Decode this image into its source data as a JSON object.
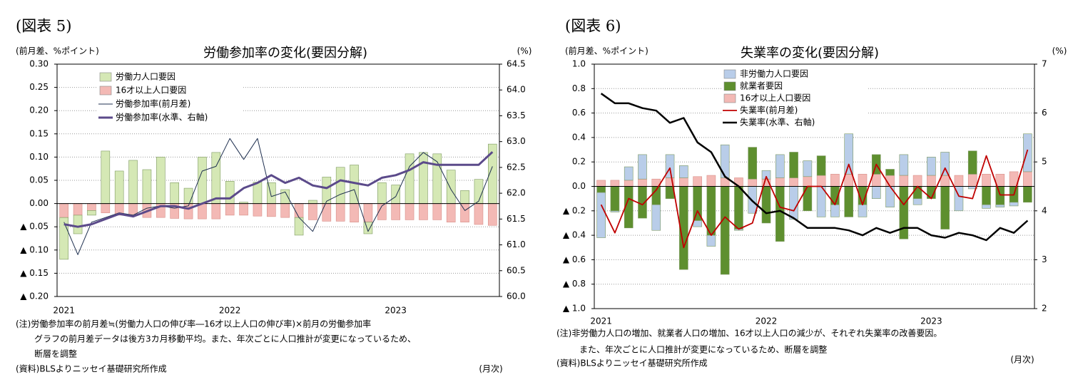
{
  "chart_data": [
    {
      "type": "bar_line",
      "caption": "(図表 5)",
      "title": "労働参加率の変化(要因分解)",
      "y_label": "(前月差、%ポイント)",
      "y2_label": "(%)",
      "x_unit": "(月次)",
      "notes": [
        "(注)労働参加率の前月差≒(労働力人口の伸び率―16才以上人口の伸び率)×前月の労働参加率",
        "グラフの前月差データは後方3カ月移動平均。また、年次ごとに人口推計が変更になっているため、",
        "断層を調整"
      ],
      "source": "(資料)BLSよりニッセイ基礎研究所作成",
      "categories": [
        "2021",
        null,
        null,
        null,
        null,
        null,
        null,
        null,
        null,
        null,
        null,
        null,
        "2022",
        null,
        null,
        null,
        null,
        null,
        null,
        null,
        null,
        null,
        null,
        null,
        "2023",
        null,
        null,
        null,
        null,
        null,
        null,
        null
      ],
      "series": [
        {
          "name": "労働力人口要因",
          "kind": "bar",
          "color": "#d5e8b5",
          "values": [
            -0.09,
            -0.04,
            -0.01,
            0.113,
            0.07,
            0.093,
            0.073,
            0.1,
            0.045,
            0.033,
            0.1,
            0.11,
            0.048,
            0.003,
            0.046,
            0.045,
            0.03,
            -0.038,
            0.007,
            0.057,
            0.078,
            0.083,
            -0.025,
            0.045,
            0.04,
            0.107,
            0.11,
            0.107,
            0.072,
            0.028,
            0.052,
            0.128
          ]
        },
        {
          "name": "16才以上人口要因",
          "kind": "bar",
          "color": "#f3b9b5",
          "values": [
            -0.03,
            -0.025,
            -0.015,
            -0.02,
            -0.025,
            -0.025,
            -0.03,
            -0.03,
            -0.032,
            -0.033,
            -0.033,
            -0.033,
            -0.025,
            -0.025,
            -0.027,
            -0.028,
            -0.03,
            -0.03,
            -0.035,
            -0.038,
            -0.038,
            -0.04,
            -0.04,
            -0.035,
            -0.035,
            -0.035,
            -0.035,
            -0.035,
            -0.04,
            -0.04,
            -0.045,
            -0.047
          ]
        },
        {
          "name": "労働参加率(前月差)",
          "kind": "line",
          "color": "#1f3050",
          "line_width": 1,
          "values": [
            -0.04,
            -0.11,
            -0.04,
            -0.03,
            -0.02,
            -0.025,
            -0.01,
            -0.005,
            -0.01,
            -0.005,
            0.07,
            0.08,
            0.14,
            0.095,
            0.14,
            0.015,
            0.025,
            -0.03,
            -0.06,
            0.005,
            0.02,
            0.03,
            -0.06,
            -0.005,
            0.015,
            0.08,
            0.11,
            0.09,
            0.03,
            -0.015,
            0.005,
            0.08
          ]
        },
        {
          "name": "労働参加率(水準、右軸)",
          "kind": "line",
          "axis": "y2",
          "color": "#5b4a8a",
          "line_width": 3,
          "values": [
            61.4,
            61.35,
            61.4,
            61.5,
            61.6,
            61.55,
            61.65,
            61.75,
            61.75,
            61.7,
            61.8,
            61.9,
            61.9,
            62.1,
            62.2,
            62.35,
            62.2,
            62.3,
            62.15,
            62.1,
            62.25,
            62.2,
            62.15,
            62.3,
            62.35,
            62.45,
            62.6,
            62.55,
            62.55,
            62.55,
            62.55,
            62.8
          ]
        }
      ],
      "ylim": [
        -0.2,
        0.3
      ],
      "yticks": [
        {
          "value": 0.3,
          "label": "0.30"
        },
        0.25,
        {
          "value": 0.2,
          "label": "0.20"
        },
        0.15,
        {
          "value": 0.1,
          "label": "0.10"
        },
        0.05,
        {
          "value": 0,
          "label": "0.00"
        },
        {
          "value": -0.05,
          "label": "▲ 0.05"
        },
        {
          "value": -0.1,
          "label": "▲ 0.10"
        },
        {
          "value": -0.15,
          "label": "▲ 0.15"
        },
        {
          "value": -0.2,
          "label": "▲ 0.20"
        }
      ],
      "y2lim": [
        60,
        64.5
      ],
      "y2ticks": [
        64.5,
        {
          "value": 64,
          "label": "64.0"
        },
        63.5,
        {
          "value": 63,
          "label": "63.0"
        },
        62.5,
        {
          "value": 62,
          "label": "62.0"
        },
        61.5,
        {
          "value": 61,
          "label": "61.0"
        },
        60.5,
        {
          "value": 60,
          "label": "60.0"
        }
      ],
      "grid": true,
      "legend": "upper left"
    },
    {
      "type": "bar_line",
      "caption": "(図表 6)",
      "title": "失業率の変化(要因分解)",
      "y_label": "(前月差、%ポイント)",
      "y2_label": "(%)",
      "x_unit": "(月次)",
      "notes": [
        "(注)非労働力人口の増加、就業者人口の増加、16才以上人口の減少が、それぞれ失業率の改善要因。",
        "また、年次ごとに人口推計が変更になっているため、断層を調整"
      ],
      "source": "(資料)BLSよりニッセイ基礎研究所作成",
      "categories": [
        "2021",
        null,
        null,
        null,
        null,
        null,
        null,
        null,
        null,
        null,
        null,
        null,
        "2022",
        null,
        null,
        null,
        null,
        null,
        null,
        null,
        null,
        null,
        null,
        null,
        "2023",
        null,
        null,
        null,
        null,
        null,
        null,
        null
      ],
      "series": [
        {
          "name": "非労働力人口要因",
          "kind": "bar",
          "color": "#b9cde9",
          "values": [
            -0.37,
            -0.01,
            0.11,
            0.2,
            -0.21,
            0.19,
            0.1,
            -0.05,
            -0.09,
            0.27,
            -0.01,
            -0.22,
            0.07,
            0.19,
            -0.27,
            0.13,
            -0.25,
            -0.1,
            0.33,
            -0.1,
            -0.1,
            -0.17,
            0.17,
            -0.05,
            0.15,
            0.19,
            -0.2,
            -0.02,
            -0.03,
            -0.02,
            -0.03,
            0.31
          ]
        },
        {
          "name": "就業者要因",
          "kind": "bar",
          "color": "#5e8f2f",
          "values": [
            -0.05,
            -0.2,
            -0.34,
            -0.26,
            -0.15,
            -0.1,
            -0.68,
            -0.28,
            -0.4,
            -0.72,
            -0.35,
            0.26,
            -0.3,
            -0.45,
            0.21,
            -0.2,
            0.16,
            -0.15,
            -0.25,
            -0.15,
            0.16,
            0.05,
            -0.43,
            -0.1,
            -0.1,
            -0.35,
            0,
            0.19,
            -0.15,
            -0.15,
            -0.13,
            -0.13
          ]
        },
        {
          "name": "16才以上人口要因",
          "kind": "bar",
          "color": "#f3b9b5",
          "values": [
            0.05,
            0.05,
            0.05,
            0.06,
            0.06,
            0.07,
            0.07,
            0.08,
            0.09,
            0.07,
            0.07,
            0.06,
            0.06,
            0.07,
            0.07,
            0.08,
            0.09,
            0.1,
            0.1,
            0.1,
            0.1,
            0.09,
            0.09,
            0.09,
            0.09,
            0.09,
            0.09,
            0.1,
            0.1,
            0.1,
            0.12,
            0.12
          ]
        },
        {
          "name": "失業率(前月差)",
          "kind": "line",
          "color": "#c00000",
          "line_width": 1.8,
          "values": [
            -0.15,
            -0.38,
            -0.1,
            -0.15,
            -0.03,
            0.15,
            -0.5,
            -0.2,
            -0.4,
            -0.25,
            -0.35,
            -0.3,
            0.08,
            -0.17,
            -0.2,
            0,
            0,
            -0.15,
            0.18,
            -0.15,
            0.18,
            0,
            -0.15,
            0,
            -0.1,
            0.15,
            -0.08,
            -0.1,
            0.25,
            -0.07,
            -0.07,
            0.3
          ]
        },
        {
          "name": "失業率(水準、右軸)",
          "kind": "line",
          "axis": "y2",
          "color": "#000000",
          "line_width": 2.5,
          "values": [
            6.4,
            6.2,
            6.2,
            6.1,
            6.05,
            5.8,
            5.9,
            5.4,
            5.2,
            4.7,
            4.5,
            4.2,
            3.95,
            4.0,
            3.85,
            3.65,
            3.65,
            3.65,
            3.6,
            3.5,
            3.65,
            3.55,
            3.65,
            3.65,
            3.5,
            3.45,
            3.55,
            3.5,
            3.4,
            3.65,
            3.55,
            3.8
          ]
        }
      ],
      "ylim": [
        -1,
        1
      ],
      "yticks": [
        {
          "value": 1,
          "label": "1.0"
        },
        0.8,
        0.6,
        0.4,
        0.2,
        {
          "value": 0,
          "label": "0.0"
        },
        {
          "value": -0.2,
          "label": "▲ 0.2"
        },
        {
          "value": -0.4,
          "label": "▲ 0.4"
        },
        {
          "value": -0.6,
          "label": "▲ 0.6"
        },
        {
          "value": -0.8,
          "label": "▲ 0.8"
        },
        {
          "value": -1,
          "label": "▲ 1.0"
        }
      ],
      "y2lim": [
        2,
        7
      ],
      "y2ticks": [
        7,
        6,
        5,
        4,
        3,
        2
      ],
      "grid": true,
      "legend": "upper left"
    }
  ]
}
